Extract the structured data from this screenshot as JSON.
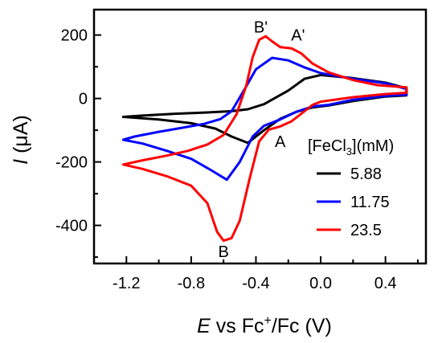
{
  "chart_data": {
    "type": "line",
    "title": "",
    "xlabel": {
      "italic": "E",
      "pre": " vs Fc",
      "sup": "+",
      "post": "/Fc (V)"
    },
    "ylabel": {
      "italic": "I",
      "rest": " (μA)"
    },
    "xlim": [
      -1.4,
      0.65
    ],
    "ylim": [
      -520,
      280
    ],
    "x_ticks": [
      -1.2,
      -0.8,
      -0.4,
      0.0,
      0.4
    ],
    "x_tick_labels": [
      "-1.2",
      "-0.8",
      "-0.4",
      "0.0",
      "0.4"
    ],
    "y_ticks": [
      -400,
      -200,
      0,
      200
    ],
    "y_tick_labels": [
      "-400",
      "-200",
      "0",
      "200"
    ],
    "grid": false,
    "legend": {
      "title": {
        "pre": "[FeCl",
        "sub": "3",
        "post": "](mM)"
      },
      "placement": "lower-right"
    },
    "annotations": [
      {
        "text": "B'",
        "x": -0.37,
        "y": 225
      },
      {
        "text": "A'",
        "x": -0.14,
        "y": 200
      },
      {
        "text": "A",
        "x": -0.25,
        "y": -135
      },
      {
        "text": "B",
        "x": -0.6,
        "y": -482
      }
    ],
    "series": [
      {
        "name": "5.88",
        "color": "#000000",
        "x": [
          -1.22,
          -1.1,
          -0.9,
          -0.7,
          -0.55,
          -0.45,
          -0.35,
          -0.2,
          -0.1,
          0.0,
          0.2,
          0.4,
          0.53,
          0.53,
          0.4,
          0.2,
          0.05,
          -0.05,
          -0.15,
          -0.25,
          -0.35,
          -0.45,
          -0.55,
          -0.65,
          -0.8,
          -1.0,
          -1.22
        ],
        "y": [
          -58,
          -54,
          -48,
          -44,
          -40,
          -34,
          -18,
          25,
          62,
          74,
          64,
          50,
          32,
          10,
          6,
          -8,
          -22,
          -28,
          -42,
          -64,
          -100,
          -140,
          -120,
          -95,
          -78,
          -66,
          -58
        ]
      },
      {
        "name": "11.75",
        "color": "#0000ff",
        "x": [
          -1.22,
          -1.15,
          -1.0,
          -0.85,
          -0.72,
          -0.62,
          -0.55,
          -0.48,
          -0.4,
          -0.3,
          -0.2,
          -0.1,
          0.0,
          0.2,
          0.4,
          0.53,
          0.53,
          0.4,
          0.2,
          0.05,
          -0.05,
          -0.15,
          -0.25,
          -0.35,
          -0.42,
          -0.5,
          -0.58,
          -0.68,
          -0.8,
          -0.95,
          -1.1,
          -1.22
        ],
        "y": [
          -130,
          -120,
          -105,
          -92,
          -80,
          -65,
          -40,
          20,
          92,
          128,
          120,
          98,
          80,
          62,
          48,
          30,
          12,
          8,
          -4,
          -20,
          -25,
          -42,
          -66,
          -86,
          -120,
          -200,
          -256,
          -225,
          -190,
          -165,
          -142,
          -130
        ]
      },
      {
        "name": "23.5",
        "color": "#ff0000",
        "x": [
          -1.22,
          -1.1,
          -0.95,
          -0.82,
          -0.7,
          -0.6,
          -0.52,
          -0.46,
          -0.42,
          -0.38,
          -0.34,
          -0.3,
          -0.25,
          -0.18,
          -0.12,
          -0.05,
          0.05,
          0.2,
          0.35,
          0.53,
          0.53,
          0.4,
          0.2,
          0.0,
          -0.05,
          -0.12,
          -0.18,
          -0.25,
          -0.32,
          -0.38,
          -0.44,
          -0.5,
          -0.55,
          -0.6,
          -0.64,
          -0.7,
          -0.8,
          -0.95,
          -1.1,
          -1.22
        ],
        "y": [
          -208,
          -195,
          -180,
          -165,
          -145,
          -115,
          -50,
          40,
          130,
          185,
          196,
          180,
          162,
          158,
          142,
          110,
          82,
          58,
          42,
          35,
          18,
          14,
          4,
          -10,
          -20,
          -48,
          -72,
          -88,
          -98,
          -135,
          -255,
          -385,
          -440,
          -448,
          -420,
          -330,
          -275,
          -245,
          -222,
          -208
        ]
      }
    ]
  }
}
